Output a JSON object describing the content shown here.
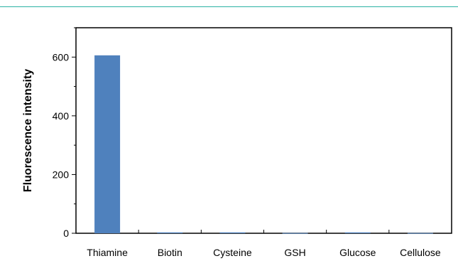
{
  "chart_data": {
    "type": "bar",
    "categories": [
      "Thiamine",
      "Biotin",
      "Cysteine",
      "GSH",
      "Glucose",
      "Cellulose"
    ],
    "values": [
      606,
      3,
      3,
      1,
      3,
      1
    ],
    "title": "",
    "xlabel": "",
    "ylabel": "Fluorescence intensity",
    "ylim": [
      0,
      700
    ],
    "yticks": [
      0,
      200,
      400,
      600
    ],
    "bar_color": "#4f81bd",
    "grid": false,
    "legend": "none"
  }
}
